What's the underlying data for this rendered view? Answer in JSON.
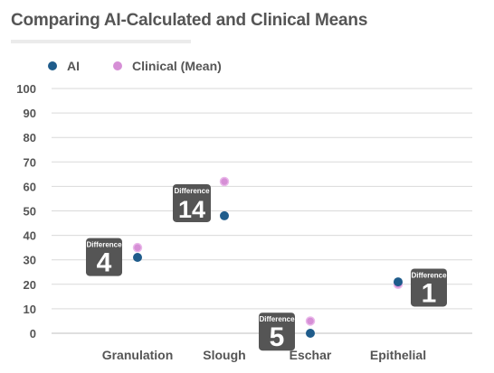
{
  "title": "Comparing AI-Calculated and Clinical Means",
  "chart_data": {
    "type": "scatter",
    "title": "Comparing AI-Calculated and Clinical Means",
    "xlabel": "",
    "ylabel": "",
    "categories": [
      "Granulation",
      "Slough",
      "Eschar",
      "Epithelial"
    ],
    "series": [
      {
        "name": "AI",
        "values": [
          31,
          48,
          0,
          21
        ],
        "color": "#1f5c8b"
      },
      {
        "name": "Clinical (Mean)",
        "values": [
          35,
          62,
          5,
          20
        ],
        "color": "#d68fd6"
      }
    ],
    "ylim": [
      0,
      100
    ],
    "yticks": [
      0,
      10,
      20,
      30,
      40,
      50,
      60,
      70,
      80,
      90,
      100
    ],
    "grid": true,
    "legend_position": "top-left",
    "annotations": [
      {
        "category": "Granulation",
        "label": "Difference",
        "value": "4",
        "side": "left"
      },
      {
        "category": "Slough",
        "label": "Difference",
        "value": "14",
        "side": "left"
      },
      {
        "category": "Eschar",
        "label": "Difference",
        "value": "5",
        "side": "left"
      },
      {
        "category": "Epithelial",
        "label": "Difference",
        "value": "1",
        "side": "right"
      }
    ],
    "annotation_color": "#555555"
  }
}
